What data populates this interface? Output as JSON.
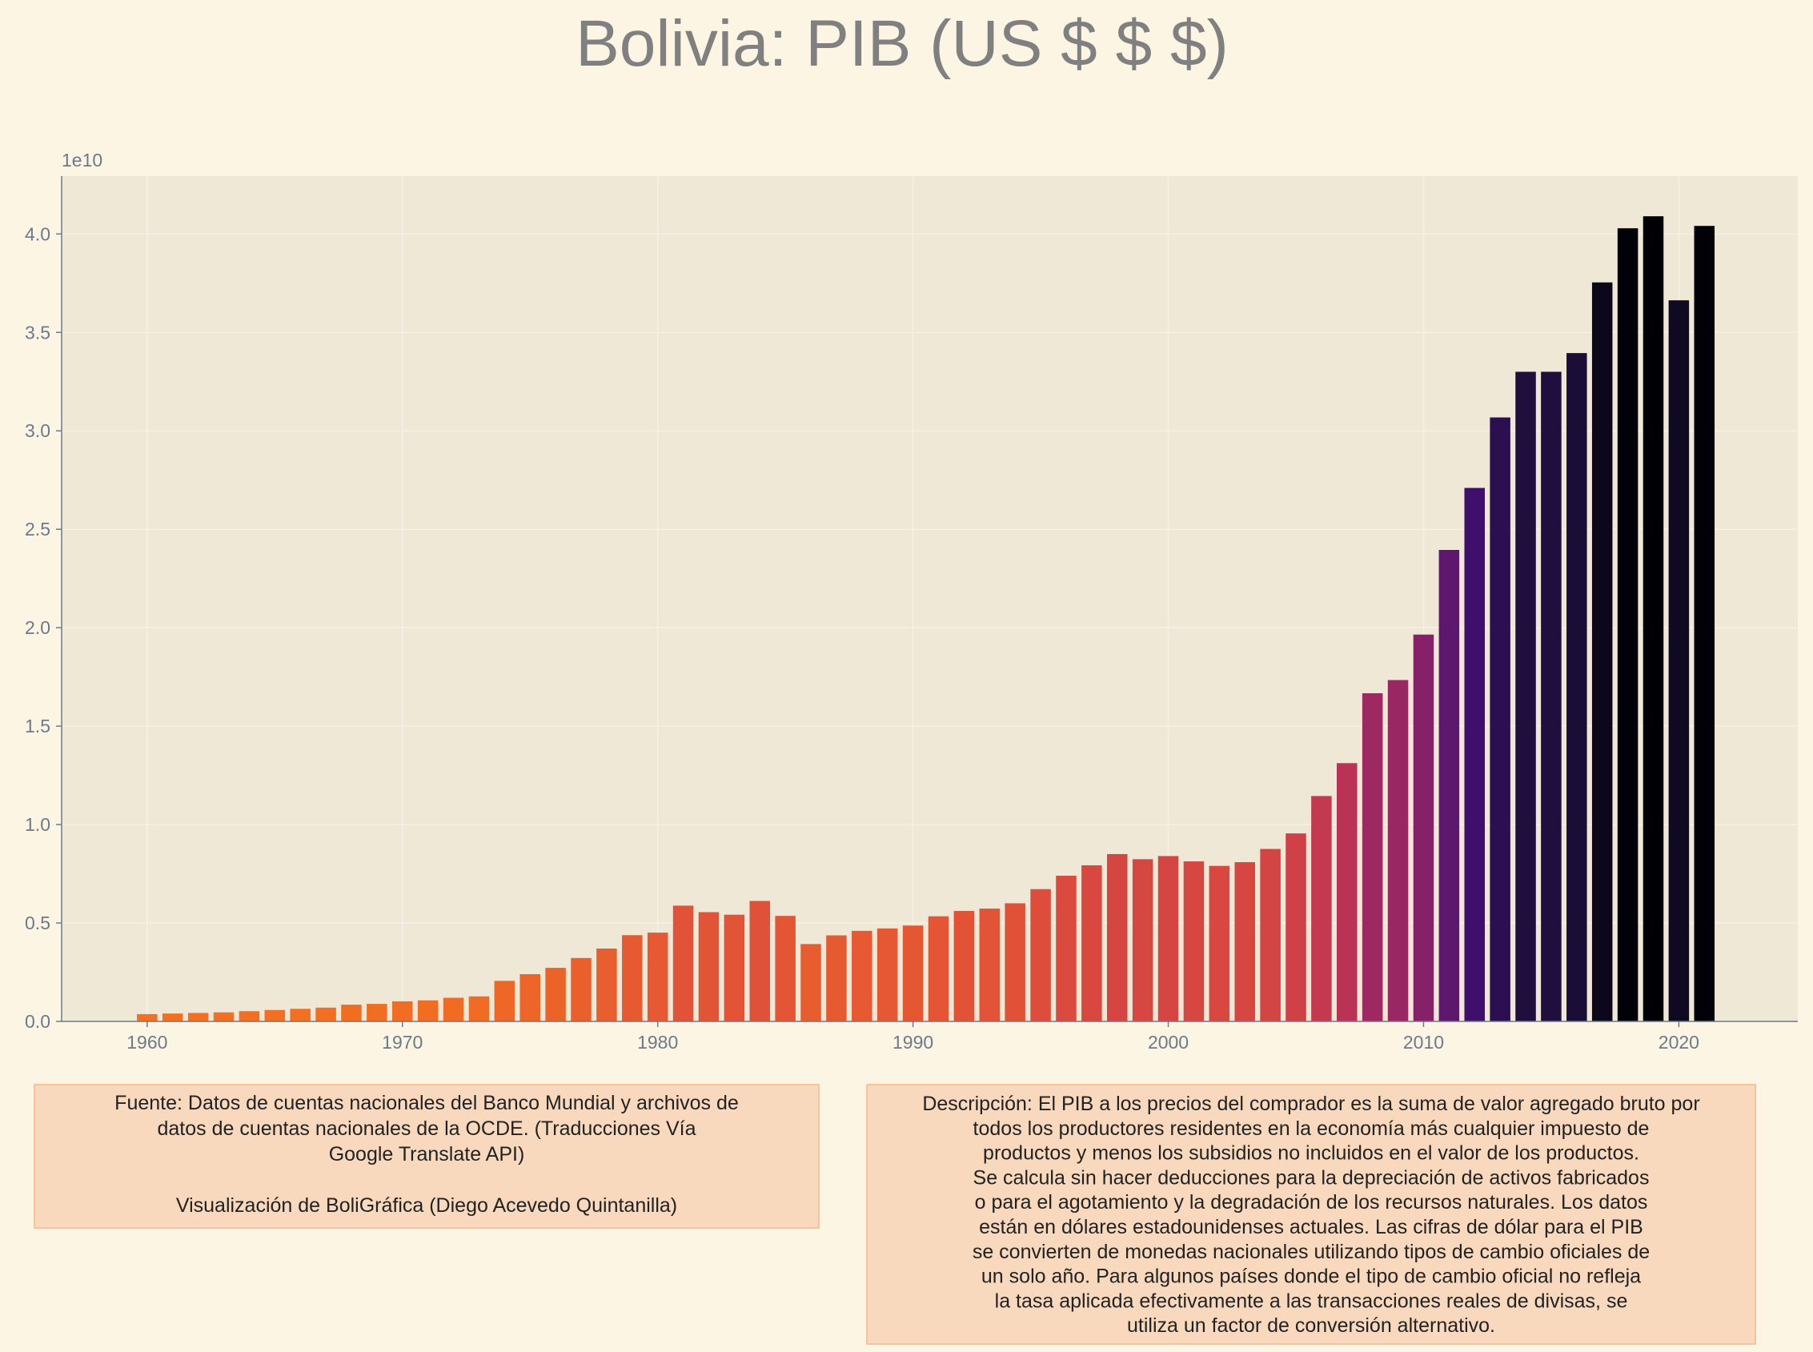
{
  "chart_data": {
    "type": "bar",
    "title": "Bolivia:  PIB (US $ $ $)",
    "y_offset_label": "1e10",
    "x": [
      1960,
      1961,
      1962,
      1963,
      1964,
      1965,
      1966,
      1967,
      1968,
      1969,
      1970,
      1971,
      1972,
      1973,
      1974,
      1975,
      1976,
      1977,
      1978,
      1979,
      1980,
      1981,
      1982,
      1983,
      1984,
      1985,
      1986,
      1987,
      1988,
      1989,
      1990,
      1991,
      1992,
      1993,
      1994,
      1995,
      1996,
      1997,
      1998,
      1999,
      2000,
      2001,
      2002,
      2003,
      2004,
      2005,
      2006,
      2007,
      2008,
      2009,
      2010,
      2011,
      2012,
      2013,
      2014,
      2015,
      2016,
      2017,
      2018,
      2019,
      2020,
      2021
    ],
    "values": [
      0.037,
      0.04,
      0.043,
      0.046,
      0.052,
      0.058,
      0.064,
      0.07,
      0.085,
      0.089,
      0.102,
      0.107,
      0.12,
      0.127,
      0.206,
      0.24,
      0.272,
      0.322,
      0.37,
      0.438,
      0.451,
      0.588,
      0.555,
      0.542,
      0.612,
      0.536,
      0.393,
      0.437,
      0.46,
      0.472,
      0.487,
      0.534,
      0.561,
      0.573,
      0.6,
      0.672,
      0.74,
      0.793,
      0.85,
      0.824,
      0.84,
      0.813,
      0.79,
      0.809,
      0.876,
      0.955,
      1.145,
      1.312,
      1.667,
      1.734,
      1.965,
      2.395,
      2.71,
      3.068,
      3.3,
      3.3,
      3.395,
      3.754,
      4.029,
      4.09,
      3.663,
      4.041
    ],
    "colormap": [
      "#f47020",
      "#dd4b3d",
      "#b5305a",
      "#7e1e6c",
      "#3b0f6c",
      "#1a0e34",
      "#000004"
    ],
    "xlim": [
      1956.65,
      2024.66
    ],
    "xticks": [
      1960,
      1970,
      1980,
      1990,
      2000,
      2010,
      2020
    ],
    "ylim": [
      0,
      4.294
    ],
    "yticks": [
      {
        "value": 0,
        "label": "0.0"
      },
      0.5,
      {
        "value": 1,
        "label": "1.0"
      },
      1.5,
      {
        "value": 2,
        "label": "2.0"
      },
      2.5,
      {
        "value": 3,
        "label": "3.0"
      },
      3.5,
      {
        "value": 4,
        "label": "4.0"
      }
    ],
    "grid": true
  },
  "source_box": {
    "lines": [
      "Fuente: Datos de cuentas nacionales del Banco Mundial y archivos de",
      "datos de cuentas nacionales de la OCDE. (Traducciones Vía",
      "Google Translate API)",
      "",
      "Visualización de BoliGráfica (Diego Acevedo Quintanilla)"
    ]
  },
  "description_box": {
    "lines": [
      "Descripción: El PIB a los precios del comprador es la suma de valor agregado bruto por",
      "todos los productores residentes en la economía más cualquier impuesto de",
      "productos y menos los subsidios no incluidos en el valor de los productos.",
      "Se calcula sin hacer deducciones para la depreciación de activos fabricados",
      "o para el agotamiento y la degradación de los recursos naturales. Los datos",
      "están en dólares estadounidenses actuales. Las cifras de dólar para el PIB",
      "se convierten de monedas nacionales utilizando tipos de cambio oficiales de",
      "un solo año. Para algunos países donde el tipo de cambio oficial no refleja",
      "la tasa aplicada efectivamente a las transacciones reales de divisas, se",
      "utiliza un factor de conversión alternativo."
    ]
  }
}
